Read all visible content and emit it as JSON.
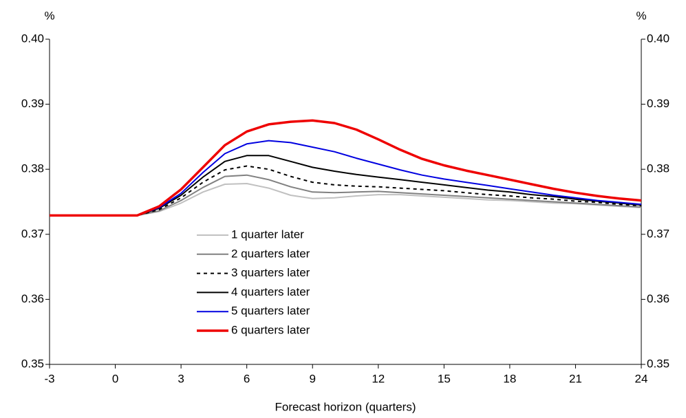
{
  "chart_data": {
    "type": "line",
    "y_label": "%",
    "y2_label": "%",
    "x_label": "Forecast horizon (quarters)",
    "x": [
      -3,
      -2,
      -1,
      0,
      1,
      2,
      3,
      4,
      5,
      6,
      7,
      8,
      9,
      10,
      11,
      12,
      13,
      14,
      15,
      16,
      17,
      18,
      19,
      20,
      21,
      22,
      23,
      24
    ],
    "xlim": [
      -3,
      24
    ],
    "xticks": [
      -3,
      0,
      3,
      6,
      9,
      12,
      15,
      18,
      21,
      24
    ],
    "ylim": [
      0.35,
      0.4
    ],
    "yticks": [
      {
        "value": 0.35,
        "label": "0.35"
      },
      0.36,
      0.37,
      0.38,
      0.39,
      {
        "value": 0.4,
        "label": "0.40"
      }
    ],
    "y2lim": [
      0.35,
      0.4
    ],
    "y2ticks": [
      {
        "value": 0.35,
        "label": "0.35"
      },
      0.36,
      0.37,
      0.38,
      0.39,
      {
        "value": 0.4,
        "label": "0.40"
      }
    ],
    "legend": "center",
    "series": [
      {
        "name": "1 quarter later",
        "color": "#c0c0c0",
        "linewidth": 2,
        "style": "solid",
        "values": [
          0.3729,
          0.3729,
          0.3729,
          0.3729,
          0.3729,
          0.3735,
          0.3748,
          0.3765,
          0.3777,
          0.3778,
          0.3771,
          0.376,
          0.3755,
          0.3756,
          0.3759,
          0.3761,
          0.3761,
          0.3759,
          0.3757,
          0.3755,
          0.3753,
          0.3752,
          0.375,
          0.3748,
          0.3747,
          0.3745,
          0.3743,
          0.3741
        ]
      },
      {
        "name": "2 quarters later",
        "color": "#808080",
        "linewidth": 2,
        "style": "solid",
        "values": [
          0.3729,
          0.3729,
          0.3729,
          0.3729,
          0.3729,
          0.3736,
          0.3752,
          0.3772,
          0.3789,
          0.3791,
          0.3784,
          0.3773,
          0.3765,
          0.3764,
          0.3765,
          0.3766,
          0.3764,
          0.3762,
          0.376,
          0.3758,
          0.3756,
          0.3754,
          0.3752,
          0.375,
          0.3748,
          0.3746,
          0.3744,
          0.3742
        ]
      },
      {
        "name": "3 quarters later",
        "color": "#000000",
        "linewidth": 2,
        "style": "dashed",
        "values": [
          0.3729,
          0.3729,
          0.3729,
          0.3729,
          0.3729,
          0.3738,
          0.3756,
          0.378,
          0.3799,
          0.3805,
          0.38,
          0.3789,
          0.378,
          0.3776,
          0.3774,
          0.3773,
          0.3771,
          0.3769,
          0.3767,
          0.3764,
          0.3761,
          0.3759,
          0.3756,
          0.3754,
          0.3751,
          0.3749,
          0.3746,
          0.3744
        ]
      },
      {
        "name": "4 quarters later",
        "color": "#000000",
        "linewidth": 2,
        "style": "solid",
        "values": [
          0.3729,
          0.3729,
          0.3729,
          0.3729,
          0.3729,
          0.374,
          0.376,
          0.3788,
          0.3812,
          0.3821,
          0.3821,
          0.3812,
          0.3803,
          0.3797,
          0.3792,
          0.3788,
          0.3784,
          0.378,
          0.3776,
          0.3772,
          0.3768,
          0.3765,
          0.3761,
          0.3758,
          0.3754,
          0.3751,
          0.3748,
          0.3745
        ]
      },
      {
        "name": "5 quarters later",
        "color": "#0000e0",
        "linewidth": 2,
        "style": "solid",
        "values": [
          0.3729,
          0.3729,
          0.3729,
          0.3729,
          0.3729,
          0.3741,
          0.3763,
          0.3795,
          0.3824,
          0.3839,
          0.3844,
          0.3841,
          0.3834,
          0.3827,
          0.3817,
          0.3808,
          0.3799,
          0.3791,
          0.3785,
          0.378,
          0.3775,
          0.377,
          0.3765,
          0.376,
          0.3756,
          0.3752,
          0.3749,
          0.3746
        ]
      },
      {
        "name": "6 quarters later",
        "color": "#ee0000",
        "linewidth": 3.5,
        "style": "solid",
        "values": [
          0.3729,
          0.3729,
          0.3729,
          0.3729,
          0.3729,
          0.3743,
          0.3769,
          0.3803,
          0.3837,
          0.3858,
          0.3869,
          0.3873,
          0.3875,
          0.3871,
          0.3861,
          0.3846,
          0.383,
          0.3816,
          0.3806,
          0.3798,
          0.3791,
          0.3784,
          0.3777,
          0.377,
          0.3764,
          0.3759,
          0.3755,
          0.3752
        ]
      }
    ]
  }
}
